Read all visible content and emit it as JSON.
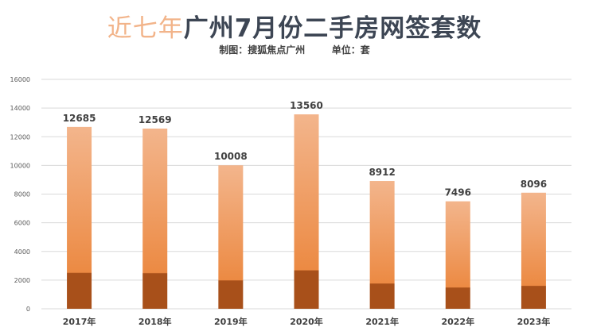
{
  "title": {
    "part1": "近七年",
    "part2": "广州7月份二手房网签套数"
  },
  "subtitle": "制图：搜狐焦点广州        单位：套",
  "colors": {
    "bar_top": "#f3b58c",
    "bar_mid": "#ec8a43",
    "bar_base": "#a8501a",
    "title_light": "#f2b48a",
    "title_dark": "#3d4654",
    "grid": "#d9d9d9"
  },
  "chart_data": {
    "type": "bar",
    "categories": [
      "2017年",
      "2018年",
      "2019年",
      "2020年",
      "2021年",
      "2022年",
      "2023年"
    ],
    "values": [
      12685,
      12569,
      10008,
      13560,
      8912,
      7496,
      8096
    ],
    "data_labels": [
      "12685",
      "12569",
      "10008",
      "13560",
      "8912",
      "7496",
      "8096"
    ],
    "y_ticks": [
      0,
      2000,
      4000,
      6000,
      8000,
      10000,
      12000,
      14000,
      16000
    ],
    "y_tick_labels": [
      "0",
      "2000",
      "4000",
      "6000",
      "8000",
      "10000",
      "12000",
      "14000",
      "16000"
    ],
    "ylim": [
      0,
      16000
    ],
    "grid": true,
    "legend": "none"
  }
}
